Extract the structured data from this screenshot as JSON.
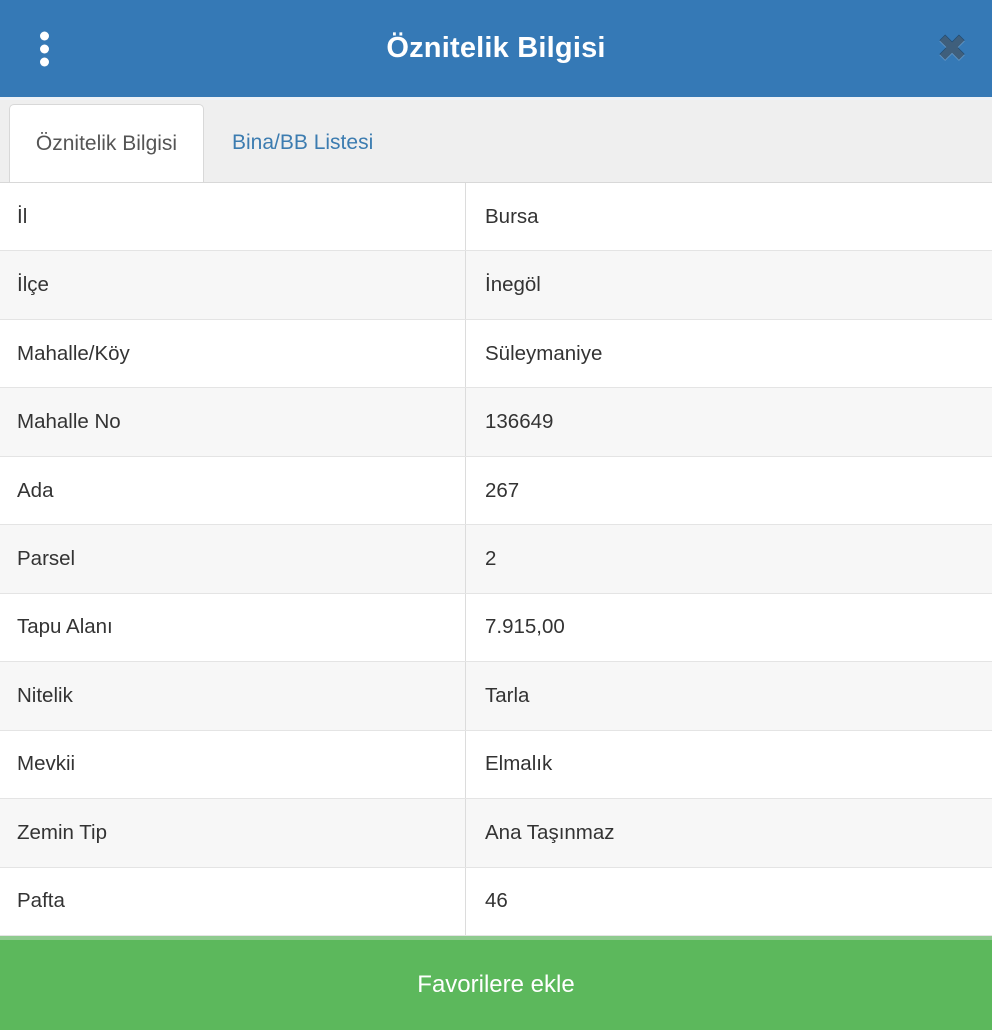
{
  "dialog": {
    "title": "Öznitelik Bilgisi"
  },
  "icons": {
    "menu": "kebab-menu",
    "close_glyph": "✖"
  },
  "tabs": [
    {
      "label": "Öznitelik Bilgisi",
      "active": true
    },
    {
      "label": "Bina/BB Listesi",
      "active": false
    }
  ],
  "attributes": {
    "rows": [
      {
        "label": "İl",
        "value": "Bursa"
      },
      {
        "label": "İlçe",
        "value": "İnegöl"
      },
      {
        "label": "Mahalle/Köy",
        "value": "Süleymaniye"
      },
      {
        "label": "Mahalle No",
        "value": "136649"
      },
      {
        "label": "Ada",
        "value": "267"
      },
      {
        "label": "Parsel",
        "value": "2"
      },
      {
        "label": "Tapu Alanı",
        "value": "7.915,00"
      },
      {
        "label": "Nitelik",
        "value": "Tarla"
      },
      {
        "label": "Mevkii",
        "value": "Elmalık"
      },
      {
        "label": "Zemin Tip",
        "value": "Ana Taşınmaz"
      },
      {
        "label": "Pafta",
        "value": "46"
      }
    ]
  },
  "footer": {
    "favorite_button_label": "Favorilere ekle"
  },
  "colors": {
    "header_bg": "#3579b6",
    "tab_link_text": "#3c7cb0",
    "active_tab_text": "#555555",
    "button_bg": "#5cb85c",
    "row_stripe": "#f7f7f7"
  }
}
